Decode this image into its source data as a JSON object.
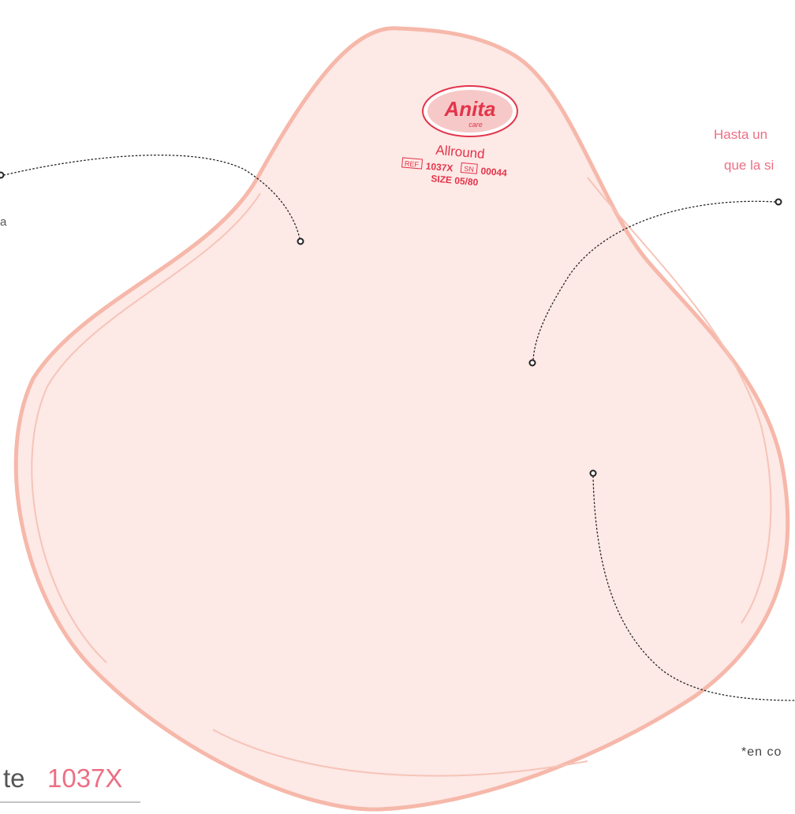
{
  "logo": {
    "brand": "Anita",
    "sub": "care"
  },
  "label": {
    "model": "Allround",
    "ref_tag": "REF",
    "ref": "1037X",
    "sn_tag": "SN",
    "sn": "00044",
    "size": "SIZE 05/80"
  },
  "callouts": {
    "left": {
      "text": "a"
    },
    "right": {
      "lines": [
        "Hasta un",
        "que la si"
      ]
    },
    "bottom_right": {
      "text": "*en co"
    }
  },
  "title": {
    "text": "te",
    "model": "1037X"
  }
}
